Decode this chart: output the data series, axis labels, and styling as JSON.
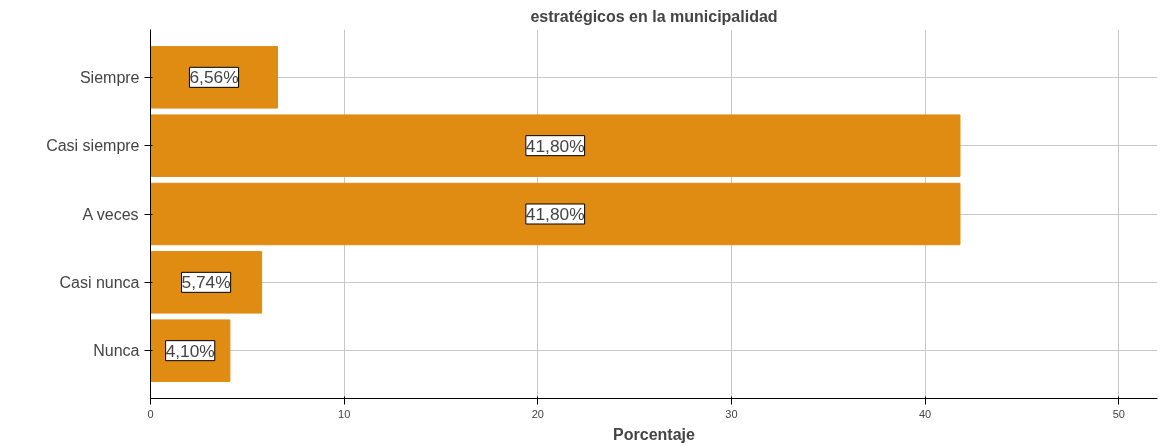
{
  "chart_data": {
    "type": "bar",
    "orientation": "horizontal",
    "title": "estratégicos en la municipalidad",
    "xlabel": "Porcentaje",
    "categories": [
      "Siempre",
      "Casi siempre",
      "A veces",
      "Casi nunca",
      "Nunca"
    ],
    "values": [
      6.56,
      41.8,
      41.8,
      5.74,
      4.1
    ],
    "value_labels": [
      "6,56%",
      "41,80%",
      "41,80%",
      "5,74%",
      "4,10%"
    ],
    "color": "#e08b12",
    "xlim": [
      0,
      52
    ],
    "xticks": [
      0,
      10,
      20,
      30,
      40,
      50
    ],
    "grid": true
  }
}
